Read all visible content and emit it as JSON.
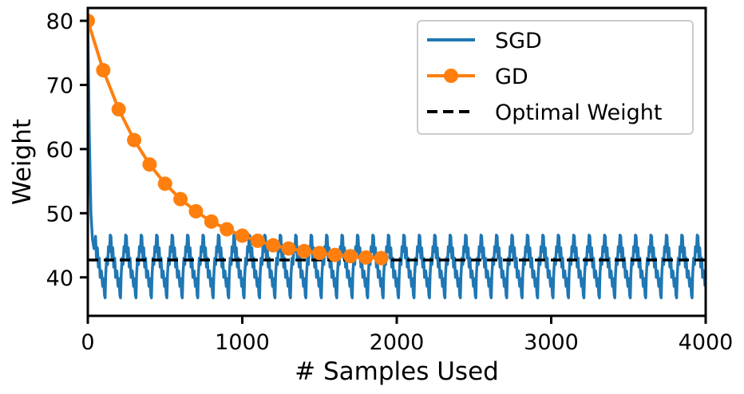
{
  "chart_data": {
    "type": "line",
    "xlabel": "# Samples Used",
    "ylabel": "Weight",
    "xlim": [
      0,
      4000
    ],
    "ylim": [
      34,
      82
    ],
    "x_ticks": [
      0,
      1000,
      2000,
      3000,
      4000
    ],
    "y_ticks": [
      40,
      50,
      60,
      70,
      80
    ],
    "grid": false,
    "legend_position": "top-right",
    "series": [
      {
        "name": "SGD",
        "color": "#1f77b4",
        "style": "solid",
        "description_values": {
          "start": 80,
          "initial_drop_to": 44,
          "oscillation_min": 36.8,
          "oscillation_max": 46.6,
          "oscillation_period": 100,
          "x_range": [
            0,
            4000
          ]
        }
      },
      {
        "name": "GD",
        "color": "#ff7f0e",
        "style": "solid-markers",
        "x": [
          0,
          100,
          200,
          300,
          400,
          500,
          600,
          700,
          800,
          900,
          1000,
          1100,
          1200,
          1300,
          1400,
          1500,
          1600,
          1700,
          1800,
          1900
        ],
        "y": [
          80.0,
          72.3,
          66.2,
          61.4,
          57.6,
          54.6,
          52.2,
          50.3,
          48.7,
          47.5,
          46.5,
          45.7,
          45.0,
          44.5,
          44.1,
          43.8,
          43.5,
          43.3,
          43.1,
          43.0
        ]
      },
      {
        "name": "Optimal Weight",
        "color": "#000000",
        "style": "dashed",
        "y_const": 42.7
      }
    ]
  }
}
